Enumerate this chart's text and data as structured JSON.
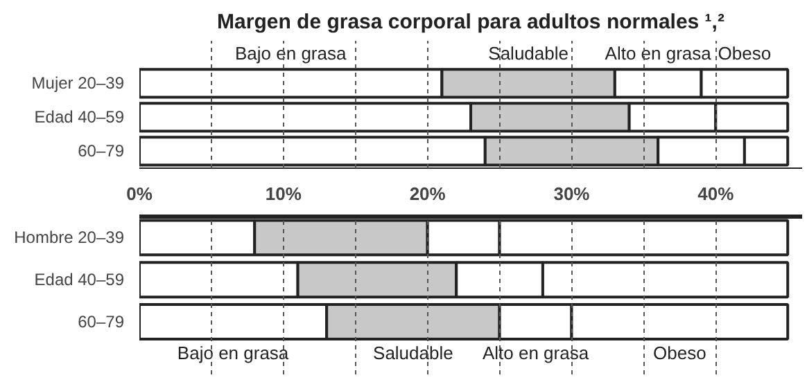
{
  "chart_data": [
    {
      "type": "bar",
      "orientation": "horizontal",
      "stacked": true,
      "title": "Margen de grasa corporal para adultos normales ¹,²",
      "categories": [
        "Mujer 20–39",
        "Edad 40–59",
        "60–79"
      ],
      "series": [
        {
          "name": "Bajo en grasa",
          "color": "#ffffff",
          "values": [
            21,
            23,
            24
          ]
        },
        {
          "name": "Saludable",
          "color": "#c8c8c8",
          "values": [
            12,
            11,
            12
          ]
        },
        {
          "name": "Alto en grasa",
          "color": "#ffffff",
          "values": [
            6,
            6,
            6
          ]
        },
        {
          "name": "Obeso",
          "color": "#ffffff",
          "values": [
            6,
            5,
            3
          ]
        }
      ],
      "xlim": [
        0,
        46
      ],
      "xticks": [
        {
          "value": 0,
          "label": "0%"
        },
        {
          "value": 5,
          "label": null
        },
        {
          "value": 10,
          "label": "10%"
        },
        {
          "value": 15,
          "label": null
        },
        {
          "value": 20,
          "label": "20%"
        },
        {
          "value": 25,
          "label": null
        },
        {
          "value": 30,
          "label": "30%"
        },
        {
          "value": 35,
          "label": null
        },
        {
          "value": 40,
          "label": "40%"
        }
      ],
      "grid": "x"
    },
    {
      "type": "bar",
      "orientation": "horizontal",
      "stacked": true,
      "categories": [
        "Hombre 20–39",
        "Edad 40–59",
        "60–79"
      ],
      "series": [
        {
          "name": "Bajo en grasa",
          "color": "#ffffff",
          "values": [
            8,
            11,
            13
          ]
        },
        {
          "name": "Saludable",
          "color": "#c8c8c8",
          "values": [
            12,
            11,
            12
          ]
        },
        {
          "name": "Alto en grasa",
          "color": "#ffffff",
          "values": [
            5,
            6,
            5
          ]
        },
        {
          "name": "Obeso",
          "color": "#ffffff",
          "values": [
            20,
            17,
            15
          ]
        }
      ],
      "xlim": [
        0,
        46
      ],
      "xticks": [
        0,
        5,
        10,
        15,
        20,
        25,
        30,
        35,
        40
      ],
      "tick_labels": "y",
      "grid": "x"
    }
  ]
}
